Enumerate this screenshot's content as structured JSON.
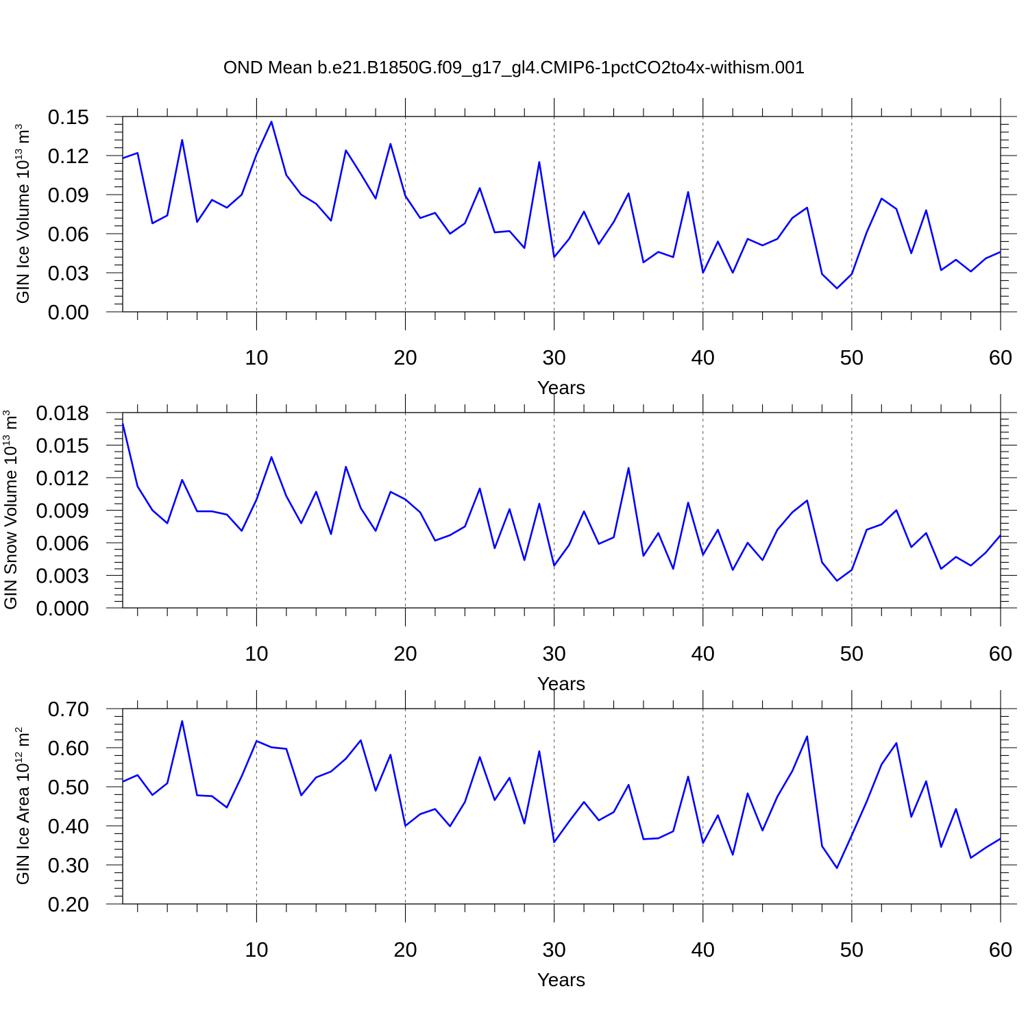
{
  "title": "OND Mean b.e21.B1850G.f09_g17_gl4.CMIP6-1pctCO2to4x-withism.001",
  "colors": {
    "series": "#0000ff",
    "grid": "#555555",
    "axis": "#000000"
  },
  "chart_data": [
    {
      "type": "line",
      "ylabel": {
        "text": "GIN Ice Volume 10",
        "exp": "13",
        "unit": " m",
        "unit_exp": "3"
      },
      "xlabel": "Years",
      "xlim": [
        1,
        60
      ],
      "ylim": [
        0,
        0.15
      ],
      "xticks": [
        10,
        20,
        30,
        40,
        50,
        60
      ],
      "xtick_labels": [
        "10",
        "20",
        "30",
        "40",
        "50",
        "60"
      ],
      "yticks": [
        0,
        0.03,
        0.06,
        0.09,
        0.12,
        0.15
      ],
      "ytick_labels": [
        "0.00",
        "0.03",
        "0.06",
        "0.09",
        "0.12",
        "0.15"
      ],
      "grid": "vertical dashed at major x ticks",
      "x": [
        1,
        2,
        3,
        4,
        5,
        6,
        7,
        8,
        9,
        10,
        11,
        12,
        13,
        14,
        15,
        16,
        17,
        18,
        19,
        20,
        21,
        22,
        23,
        24,
        25,
        26,
        27,
        28,
        29,
        30,
        31,
        32,
        33,
        34,
        35,
        36,
        37,
        38,
        39,
        40,
        41,
        42,
        43,
        44,
        45,
        46,
        47,
        48,
        49,
        50,
        51,
        52,
        53,
        54,
        55,
        56,
        57,
        58,
        59,
        60
      ],
      "values": [
        0.118,
        0.122,
        0.068,
        0.074,
        0.132,
        0.069,
        0.086,
        0.08,
        0.09,
        0.121,
        0.146,
        0.105,
        0.09,
        0.083,
        0.07,
        0.124,
        0.106,
        0.087,
        0.129,
        0.089,
        0.072,
        0.076,
        0.06,
        0.068,
        0.095,
        0.061,
        0.062,
        0.049,
        0.115,
        0.042,
        0.056,
        0.077,
        0.052,
        0.069,
        0.091,
        0.038,
        0.046,
        0.042,
        0.092,
        0.03,
        0.054,
        0.03,
        0.056,
        0.051,
        0.056,
        0.072,
        0.08,
        0.029,
        0.018,
        0.029,
        0.061,
        0.087,
        0.079,
        0.045,
        0.078,
        0.032,
        0.04,
        0.031,
        0.041,
        0.046
      ]
    },
    {
      "type": "line",
      "ylabel": {
        "text": "GIN Snow Volume 10",
        "exp": "13",
        "unit": " m",
        "unit_exp": "3"
      },
      "xlabel": "Years",
      "xlim": [
        1,
        60
      ],
      "ylim": [
        0,
        0.018
      ],
      "xticks": [
        10,
        20,
        30,
        40,
        50,
        60
      ],
      "xtick_labels": [
        "10",
        "20",
        "30",
        "40",
        "50",
        "60"
      ],
      "yticks": [
        0,
        0.003,
        0.006,
        0.009,
        0.012,
        0.015,
        0.018
      ],
      "ytick_labels": [
        "0.000",
        "0.003",
        "0.006",
        "0.009",
        "0.012",
        "0.015",
        "0.018"
      ],
      "grid": "vertical dashed at major x ticks",
      "x": [
        1,
        2,
        3,
        4,
        5,
        6,
        7,
        8,
        9,
        10,
        11,
        12,
        13,
        14,
        15,
        16,
        17,
        18,
        19,
        20,
        21,
        22,
        23,
        24,
        25,
        26,
        27,
        28,
        29,
        30,
        31,
        32,
        33,
        34,
        35,
        36,
        37,
        38,
        39,
        40,
        41,
        42,
        43,
        44,
        45,
        46,
        47,
        48,
        49,
        50,
        51,
        52,
        53,
        54,
        55,
        56,
        57,
        58,
        59,
        60
      ],
      "values": [
        0.017,
        0.0112,
        0.009,
        0.0078,
        0.0118,
        0.0089,
        0.0089,
        0.0086,
        0.0071,
        0.01,
        0.0139,
        0.0103,
        0.0078,
        0.0107,
        0.0068,
        0.013,
        0.0092,
        0.0071,
        0.0107,
        0.01,
        0.0088,
        0.0062,
        0.0067,
        0.0075,
        0.011,
        0.0055,
        0.0091,
        0.0044,
        0.0096,
        0.0039,
        0.0058,
        0.0089,
        0.0059,
        0.0065,
        0.0129,
        0.0048,
        0.0069,
        0.0036,
        0.0097,
        0.0049,
        0.0072,
        0.0035,
        0.006,
        0.0044,
        0.0072,
        0.0088,
        0.0099,
        0.0042,
        0.0025,
        0.0035,
        0.0072,
        0.0077,
        0.009,
        0.0056,
        0.0069,
        0.0036,
        0.0047,
        0.0039,
        0.0051,
        0.0067
      ]
    },
    {
      "type": "line",
      "ylabel": {
        "text": "GIN Ice Area 10",
        "exp": "12",
        "unit": " m",
        "unit_exp": "2"
      },
      "xlabel": "Years",
      "xlim": [
        1,
        60
      ],
      "ylim": [
        0.2,
        0.7
      ],
      "xticks": [
        10,
        20,
        30,
        40,
        50,
        60
      ],
      "xtick_labels": [
        "10",
        "20",
        "30",
        "40",
        "50",
        "60"
      ],
      "yticks": [
        0.2,
        0.3,
        0.4,
        0.5,
        0.6,
        0.7
      ],
      "ytick_labels": [
        "0.20",
        "0.30",
        "0.40",
        "0.50",
        "0.60",
        "0.70"
      ],
      "grid": "vertical dashed at major x ticks",
      "x": [
        1,
        2,
        3,
        4,
        5,
        6,
        7,
        8,
        9,
        10,
        11,
        12,
        13,
        14,
        15,
        16,
        17,
        18,
        19,
        20,
        21,
        22,
        23,
        24,
        25,
        26,
        27,
        28,
        29,
        30,
        31,
        32,
        33,
        34,
        35,
        36,
        37,
        38,
        39,
        40,
        41,
        42,
        43,
        44,
        45,
        46,
        47,
        48,
        49,
        50,
        51,
        52,
        53,
        54,
        55,
        56,
        57,
        58,
        59,
        60
      ],
      "values": [
        0.513,
        0.53,
        0.479,
        0.509,
        0.668,
        0.478,
        0.476,
        0.447,
        0.527,
        0.617,
        0.601,
        0.597,
        0.478,
        0.524,
        0.539,
        0.572,
        0.619,
        0.49,
        0.582,
        0.4,
        0.43,
        0.443,
        0.399,
        0.461,
        0.576,
        0.466,
        0.523,
        0.406,
        0.591,
        0.358,
        0.411,
        0.461,
        0.414,
        0.435,
        0.505,
        0.366,
        0.368,
        0.386,
        0.526,
        0.356,
        0.427,
        0.326,
        0.483,
        0.388,
        0.475,
        0.54,
        0.629,
        0.348,
        0.292,
        0.376,
        0.462,
        0.557,
        0.612,
        0.423,
        0.514,
        0.346,
        0.443,
        0.318,
        0.344,
        0.367
      ]
    }
  ]
}
